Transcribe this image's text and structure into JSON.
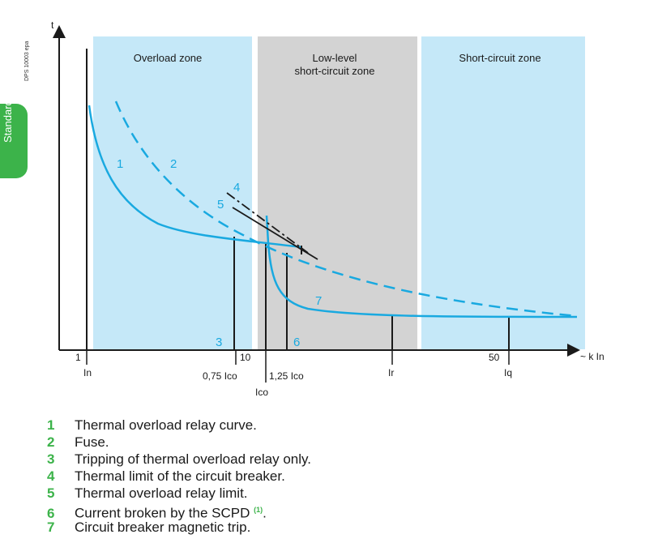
{
  "axes": {
    "y_label": "t",
    "x_unit": "~ k In",
    "ticks": [
      {
        "key": "t1",
        "label": "1"
      },
      {
        "key": "t10",
        "label": "10"
      },
      {
        "key": "t50",
        "label": "50"
      }
    ],
    "markers": {
      "in": "In",
      "ir": "Ir",
      "iq": "Iq",
      "p075": "0,75 Ico",
      "p125": "1,25 Ico",
      "ico": "Ico"
    }
  },
  "zones": {
    "overload": "Overload zone",
    "low_level_1": "Low-level",
    "low_level_2": "short-circuit zone",
    "short_circuit": "Short-circuit zone"
  },
  "curve_numbers": [
    "1",
    "2",
    "3",
    "4",
    "5",
    "6",
    "7"
  ],
  "legend": [
    {
      "num": "1",
      "text": "Thermal overload relay curve."
    },
    {
      "num": "2",
      "text": "Fuse."
    },
    {
      "num": "3",
      "text": "Tripping of thermal overload relay only."
    },
    {
      "num": "4",
      "text": "Thermal limit of the circuit breaker."
    },
    {
      "num": "5",
      "text": "Thermal overload relay limit."
    },
    {
      "num": "6",
      "text": "Current broken by the SCPD",
      "note": "(1)",
      "suffix": "."
    },
    {
      "num": "7",
      "text": "Circuit breaker magnetic trip."
    }
  ],
  "side": {
    "tab": "Standards",
    "code": "DPS 10003 epa"
  },
  "colors": {
    "zone_blue": "#c5e8f8",
    "zone_gray": "#d3d3d3",
    "curve": "#19a9e0",
    "legend_num": "#3cb34a"
  }
}
